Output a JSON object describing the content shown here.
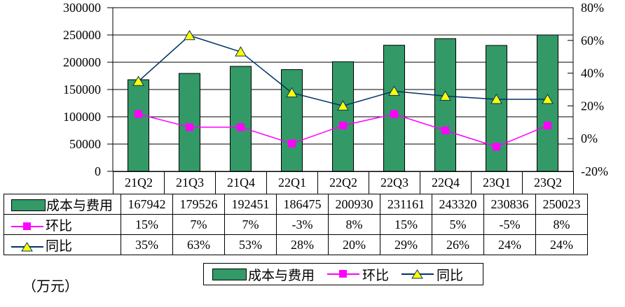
{
  "unit_label": "（万元）",
  "colors": {
    "bar_fill": "#339966",
    "bar_stroke": "#000000",
    "qoq": "#FF00FF",
    "yoy_line": "#003366",
    "yoy_marker_fill": "#FFFF00",
    "axis": "#000000",
    "background": "#FFFFFF"
  },
  "chart_data": {
    "type": "bar+line combo",
    "categories": [
      "21Q2",
      "21Q3",
      "21Q4",
      "22Q1",
      "22Q2",
      "22Q3",
      "22Q4",
      "23Q1",
      "23Q2"
    ],
    "series": [
      {
        "name": "成本与费用",
        "type": "bar",
        "axis": "left",
        "values": [
          167942,
          179526,
          192451,
          186475,
          200930,
          231161,
          243320,
          230836,
          250023
        ]
      },
      {
        "name": "环比",
        "type": "line",
        "axis": "right",
        "marker": "square",
        "values_pct": [
          15,
          7,
          7,
          -3,
          8,
          15,
          5,
          -5,
          8
        ]
      },
      {
        "name": "同比",
        "type": "line",
        "axis": "right",
        "marker": "triangle",
        "values_pct": [
          35,
          63,
          53,
          28,
          20,
          29,
          26,
          24,
          24
        ]
      }
    ],
    "left_axis": {
      "min": 0,
      "max": 300000,
      "step": 50000,
      "ticks": [
        "300000",
        "250000",
        "200000",
        "150000",
        "100000",
        "50000",
        "0"
      ]
    },
    "right_axis": {
      "min": -20,
      "max": 80,
      "step": 20,
      "ticks": [
        "80%",
        "60%",
        "40%",
        "20%",
        "0%",
        "-20%"
      ]
    },
    "grid": true,
    "legend_position": "bottom",
    "unit": "万元"
  },
  "table": {
    "rows": [
      {
        "label": "成本与费用",
        "swatch": "bar",
        "values": [
          "167942",
          "179526",
          "192451",
          "186475",
          "200930",
          "231161",
          "243320",
          "230836",
          "250023"
        ]
      },
      {
        "label": "环比",
        "swatch": "square",
        "values": [
          "15%",
          "7%",
          "7%",
          "-3%",
          "8%",
          "15%",
          "5%",
          "-5%",
          "8%"
        ]
      },
      {
        "label": "同比",
        "swatch": "triangle",
        "values": [
          "35%",
          "63%",
          "53%",
          "28%",
          "20%",
          "29%",
          "26%",
          "24%",
          "24%"
        ]
      }
    ]
  },
  "legend": {
    "items": [
      {
        "label": "成本与费用",
        "swatch": "bar"
      },
      {
        "label": "环比",
        "swatch": "square"
      },
      {
        "label": "同比",
        "swatch": "triangle"
      }
    ]
  }
}
